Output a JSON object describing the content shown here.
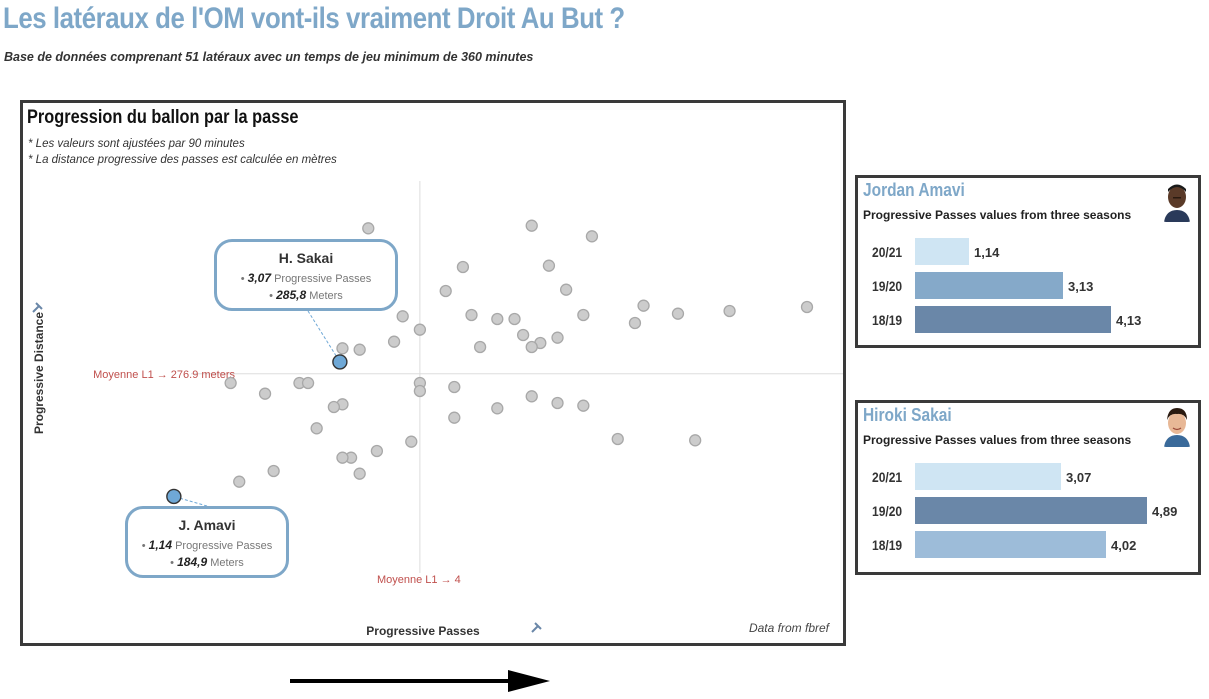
{
  "header": {
    "title": "Les latéraux de l'OM vont-ils vraiment Droit Au But ?",
    "subtitle": "Base de données comprenant 51 latéraux avec un temps de jeu minimum de 360 minutes"
  },
  "scatter": {
    "title": "Progression du ballon par la passe",
    "notes": [
      "* Les valeurs sont ajustées par 90 minutes",
      "* La distance progressive des passes est calculée en mètres"
    ],
    "source": "Data from fbref"
  },
  "chart_data": [
    {
      "type": "scatter",
      "xlabel": "Progressive Passes",
      "ylabel": "Progressive Distance",
      "xlim": [
        0.2,
        8.5
      ],
      "ylim": [
        120,
        420
      ],
      "reference_lines": {
        "x": {
          "value": 4,
          "label": "Moyenne L1 → 4"
        },
        "y": {
          "value": 276.9,
          "label": "Moyenne L1 → 276.9 meters"
        }
      },
      "colors": {
        "others": "#cccccc",
        "highlight": "#6fa8d6",
        "reference_label": "#c0504d"
      },
      "points": [
        [
          3.4,
          386
        ],
        [
          5.3,
          388
        ],
        [
          6.0,
          380
        ],
        [
          4.5,
          357
        ],
        [
          5.5,
          358
        ],
        [
          4.3,
          339
        ],
        [
          5.7,
          340
        ],
        [
          6.6,
          328
        ],
        [
          8.5,
          327
        ],
        [
          7.6,
          324
        ],
        [
          5.9,
          321
        ],
        [
          3.8,
          320
        ],
        [
          4.6,
          321
        ],
        [
          7.0,
          322
        ],
        [
          6.5,
          315
        ],
        [
          4.9,
          318
        ],
        [
          5.1,
          318
        ],
        [
          4.0,
          310
        ],
        [
          5.2,
          306
        ],
        [
          3.7,
          301
        ],
        [
          5.6,
          304
        ],
        [
          3.1,
          296
        ],
        [
          4.7,
          297
        ],
        [
          3.3,
          295
        ],
        [
          5.4,
          300
        ],
        [
          5.3,
          297
        ],
        [
          1.8,
          270
        ],
        [
          2.6,
          270
        ],
        [
          2.7,
          270
        ],
        [
          4.0,
          270
        ],
        [
          4.0,
          264
        ],
        [
          4.4,
          267
        ],
        [
          2.2,
          262
        ],
        [
          5.3,
          260
        ],
        [
          5.6,
          255
        ],
        [
          5.9,
          253
        ],
        [
          4.9,
          251
        ],
        [
          3.1,
          254
        ],
        [
          3.0,
          252
        ],
        [
          4.4,
          244
        ],
        [
          2.8,
          236
        ],
        [
          3.9,
          226
        ],
        [
          6.3,
          228
        ],
        [
          7.2,
          227
        ],
        [
          3.2,
          214
        ],
        [
          3.5,
          219
        ],
        [
          3.1,
          214
        ],
        [
          2.3,
          204
        ],
        [
          1.9,
          196
        ],
        [
          3.3,
          202
        ],
        [
          1.8,
          160
        ]
      ],
      "highlights": [
        {
          "name": "H. Sakai",
          "progressive_passes": 3.07,
          "meters": 285.8,
          "pp_label": "3,07",
          "m_label": "285,8"
        },
        {
          "name": "J. Amavi",
          "progressive_passes": 1.14,
          "meters": 184.9,
          "pp_label": "1,14",
          "m_label": "184,9"
        }
      ],
      "callout_units": {
        "pp": "Progressive Passes",
        "m": "Meters"
      }
    },
    {
      "type": "bar",
      "player": "Jordan Amavi",
      "title": "Progressive Passes values from three seasons",
      "categories": [
        "20/21",
        "19/20",
        "18/19"
      ],
      "values": [
        1.14,
        3.13,
        4.13
      ],
      "value_labels": [
        "1,14",
        "3,13",
        "4,13"
      ],
      "bar_colors": [
        "#cfe5f3",
        "#85a9c9",
        "#6a87a8"
      ]
    },
    {
      "type": "bar",
      "player": "Hiroki Sakai",
      "title": "Progressive Passes values from three seasons",
      "categories": [
        "20/21",
        "19/20",
        "18/19"
      ],
      "values": [
        3.07,
        4.89,
        4.02
      ],
      "value_labels": [
        "3,07",
        "4,89",
        "4,02"
      ],
      "bar_colors": [
        "#cfe5f3",
        "#6a87a8",
        "#9dbcd9"
      ]
    }
  ]
}
